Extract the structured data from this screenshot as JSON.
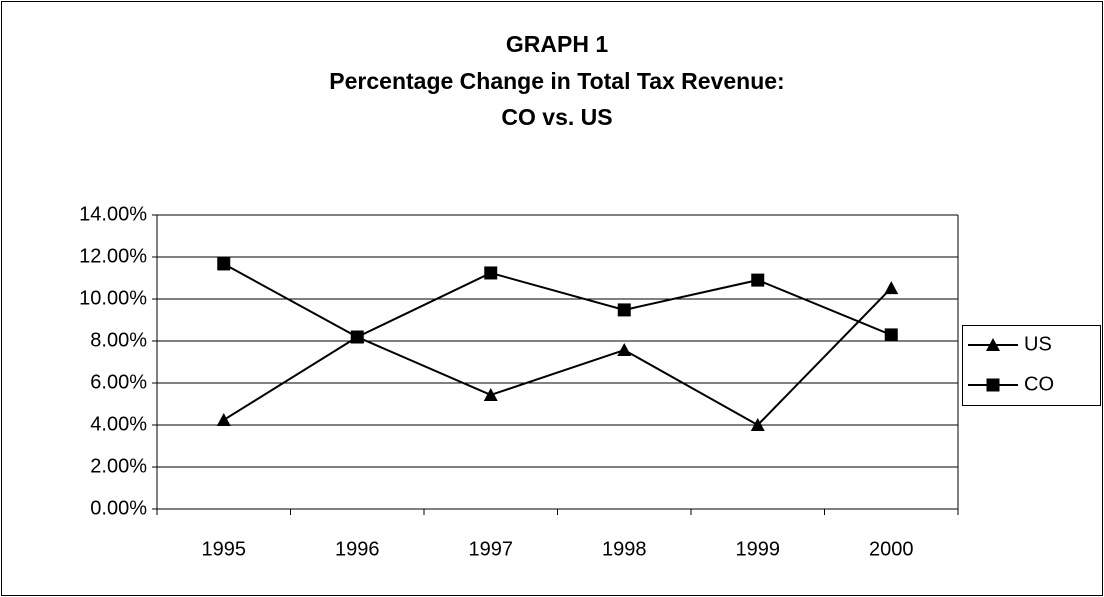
{
  "chart_data": {
    "type": "line",
    "title": [
      "GRAPH 1",
      "Percentage Change in Total Tax Revenue:",
      "CO vs. US"
    ],
    "categories": [
      "1995",
      "1996",
      "1997",
      "1998",
      "1999",
      "2000"
    ],
    "series": [
      {
        "name": "US",
        "color": "#000000",
        "marker": "triangle",
        "values": [
          4.24,
          8.19,
          5.43,
          7.57,
          4.0,
          10.52
        ]
      },
      {
        "name": "CO",
        "color": "#000000",
        "marker": "square",
        "values": [
          11.67,
          8.19,
          11.24,
          9.48,
          10.9,
          8.29
        ]
      }
    ],
    "ylim": [
      0,
      14
    ],
    "yticks": [
      {
        "value": 0,
        "label": "0.00%"
      },
      {
        "value": 2,
        "label": "2.00%"
      },
      {
        "value": 4,
        "label": "4.00%"
      },
      {
        "value": 6,
        "label": "6.00%"
      },
      {
        "value": 8,
        "label": "8.00%"
      },
      {
        "value": 10,
        "label": "10.00%"
      },
      {
        "value": 12,
        "label": "12.00%"
      },
      {
        "value": 14,
        "label": "14.00%"
      }
    ],
    "grid": true,
    "legend": "right"
  }
}
